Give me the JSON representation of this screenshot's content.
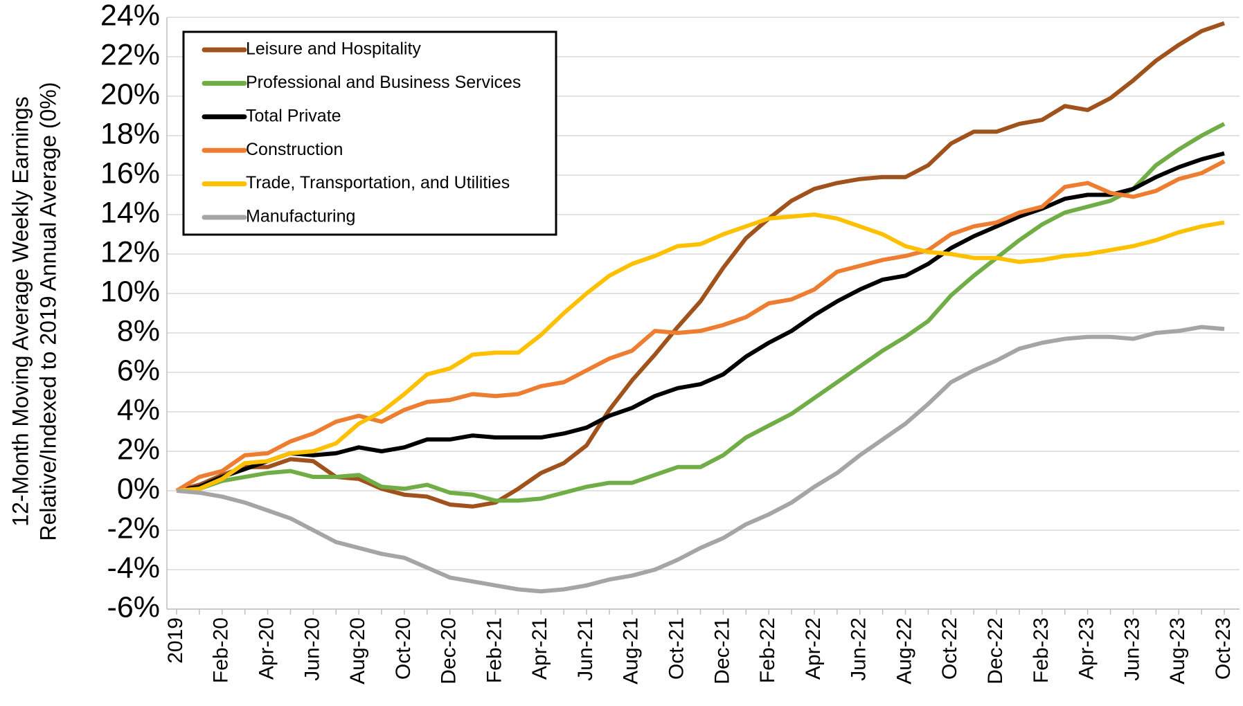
{
  "chart_data": {
    "type": "line",
    "ylabel": [
      "12-Month Moving Average Weekly Earnings",
      "Relative/Indexed to 2019 Annual Average (0%)"
    ],
    "categories": [
      "2019",
      null,
      "Feb-20",
      null,
      "Apr-20",
      null,
      "Jun-20",
      null,
      "Aug-20",
      null,
      "Oct-20",
      null,
      "Dec-20",
      null,
      "Feb-21",
      null,
      "Apr-21",
      null,
      "Jun-21",
      null,
      "Aug-21",
      null,
      "Oct-21",
      null,
      "Dec-21",
      null,
      "Feb-22",
      null,
      "Apr-22",
      null,
      "Jun-22",
      null,
      "Aug-22",
      null,
      "Oct-22",
      null,
      "Dec-22",
      null,
      "Feb-23",
      null,
      "Apr-23",
      null,
      "Jun-23",
      null,
      "Aug-23",
      null,
      "Oct-23"
    ],
    "ylim": [
      -6,
      24
    ],
    "yticks": [
      {
        "value": -6,
        "label": "-6%"
      },
      {
        "value": -4,
        "label": "-4%"
      },
      {
        "value": -2,
        "label": "-2%"
      },
      {
        "value": 0,
        "label": "0%"
      },
      {
        "value": 2,
        "label": "2%"
      },
      {
        "value": 4,
        "label": "4%"
      },
      {
        "value": 6,
        "label": "6%"
      },
      {
        "value": 8,
        "label": "8%"
      },
      {
        "value": 10,
        "label": "10%"
      },
      {
        "value": 12,
        "label": "12%"
      },
      {
        "value": 14,
        "label": "14%"
      },
      {
        "value": 16,
        "label": "16%"
      },
      {
        "value": 18,
        "label": "18%"
      },
      {
        "value": 20,
        "label": "20%"
      },
      {
        "value": 22,
        "label": "22%"
      },
      {
        "value": 24,
        "label": "24%"
      }
    ],
    "grid": true,
    "legend": "upper left",
    "series": [
      {
        "name": "Leisure and Hospitality",
        "color": "#a0521c",
        "values": [
          0,
          0.3,
          0.8,
          1.2,
          1.2,
          1.6,
          1.5,
          0.7,
          0.6,
          0.1,
          -0.2,
          -0.3,
          -0.7,
          -0.8,
          -0.6,
          0.1,
          0.9,
          1.4,
          2.3,
          4.1,
          5.6,
          6.9,
          8.3,
          9.6,
          11.3,
          12.8,
          13.8,
          14.7,
          15.3,
          15.6,
          15.8,
          15.9,
          15.9,
          16.5,
          17.6,
          18.2,
          18.2,
          18.6,
          18.8,
          19.5,
          19.3,
          19.9,
          20.8,
          21.8,
          22.6,
          23.3,
          23.7
        ]
      },
      {
        "name": "Professional and Business Services",
        "color": "#70ad47",
        "values": [
          0,
          0.1,
          0.5,
          0.7,
          0.9,
          1.0,
          0.7,
          0.7,
          0.8,
          0.2,
          0.1,
          0.3,
          -0.1,
          -0.2,
          -0.5,
          -0.5,
          -0.4,
          -0.1,
          0.2,
          0.4,
          0.4,
          0.8,
          1.2,
          1.2,
          1.8,
          2.7,
          3.3,
          3.9,
          4.7,
          5.5,
          6.3,
          7.1,
          7.8,
          8.6,
          9.9,
          10.9,
          11.8,
          12.7,
          13.5,
          14.1,
          14.4,
          14.7,
          15.3,
          16.5,
          17.3,
          18.0,
          18.6
        ]
      },
      {
        "name": "Total Private",
        "color": "#000000",
        "values": [
          0,
          0.2,
          0.7,
          1.1,
          1.5,
          1.9,
          1.8,
          1.9,
          2.2,
          2.0,
          2.2,
          2.6,
          2.6,
          2.8,
          2.7,
          2.7,
          2.7,
          2.9,
          3.2,
          3.8,
          4.2,
          4.8,
          5.2,
          5.4,
          5.9,
          6.8,
          7.5,
          8.1,
          8.9,
          9.6,
          10.2,
          10.7,
          10.9,
          11.5,
          12.3,
          12.9,
          13.4,
          13.9,
          14.3,
          14.8,
          15.0,
          15.0,
          15.3,
          15.9,
          16.4,
          16.8,
          17.1
        ]
      },
      {
        "name": "Construction",
        "color": "#ed7d31",
        "values": [
          0,
          0.7,
          1.0,
          1.8,
          1.9,
          2.5,
          2.9,
          3.5,
          3.8,
          3.5,
          4.1,
          4.5,
          4.6,
          4.9,
          4.8,
          4.9,
          5.3,
          5.5,
          6.1,
          6.7,
          7.1,
          8.1,
          8.0,
          8.1,
          8.4,
          8.8,
          9.5,
          9.7,
          10.2,
          11.1,
          11.4,
          11.7,
          11.9,
          12.2,
          13.0,
          13.4,
          13.6,
          14.1,
          14.4,
          15.4,
          15.6,
          15.1,
          14.9,
          15.2,
          15.8,
          16.1,
          16.7
        ]
      },
      {
        "name": "Trade, Transportation, and Utilities",
        "color": "#ffc000",
        "values": [
          0,
          0.1,
          0.6,
          1.4,
          1.5,
          1.9,
          2.0,
          2.4,
          3.4,
          4.0,
          4.9,
          5.9,
          6.2,
          6.9,
          7.0,
          7.0,
          7.9,
          9.0,
          10.0,
          10.9,
          11.5,
          11.9,
          12.4,
          12.5,
          13.0,
          13.4,
          13.8,
          13.9,
          14.0,
          13.8,
          13.4,
          13.0,
          12.4,
          12.1,
          12.0,
          11.8,
          11.8,
          11.6,
          11.7,
          11.9,
          12.0,
          12.2,
          12.4,
          12.7,
          13.1,
          13.4,
          13.6
        ]
      },
      {
        "name": "Manufacturing",
        "color": "#a5a5a5",
        "values": [
          0,
          -0.1,
          -0.3,
          -0.6,
          -1.0,
          -1.4,
          -2.0,
          -2.6,
          -2.9,
          -3.2,
          -3.4,
          -3.9,
          -4.4,
          -4.6,
          -4.8,
          -5.0,
          -5.1,
          -5.0,
          -4.8,
          -4.5,
          -4.3,
          -4.0,
          -3.5,
          -2.9,
          -2.4,
          -1.7,
          -1.2,
          -0.6,
          0.2,
          0.9,
          1.8,
          2.6,
          3.4,
          4.4,
          5.5,
          6.1,
          6.6,
          7.2,
          7.5,
          7.7,
          7.8,
          7.8,
          7.7,
          8.0,
          8.1,
          8.3,
          8.2
        ]
      }
    ]
  }
}
